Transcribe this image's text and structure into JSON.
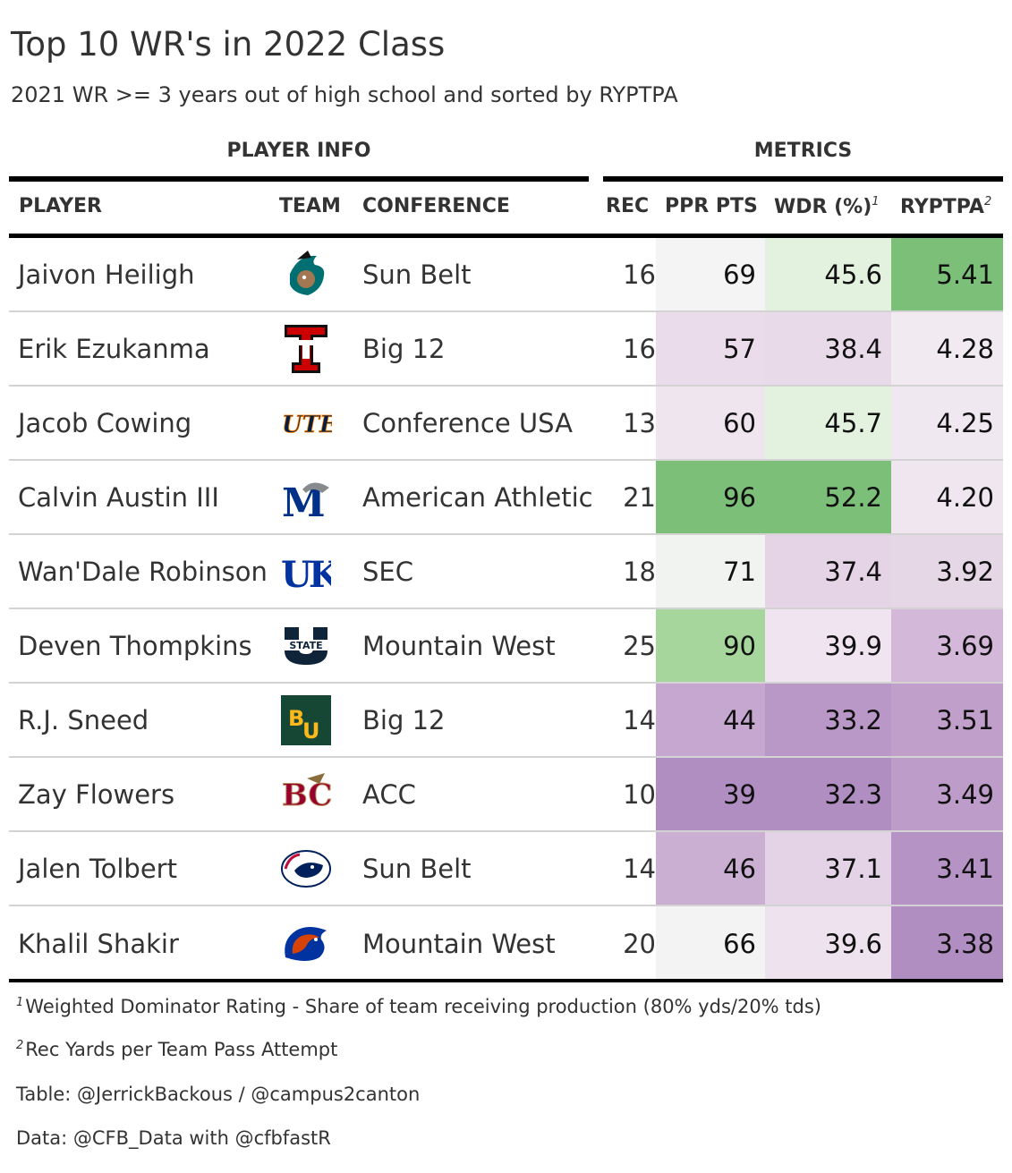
{
  "header": {
    "title": "Top 10 WR's in 2022 Class",
    "subtitle": "2021 WR >= 3 years out of high school and sorted by RYPTPA",
    "spanners": {
      "player_info": "PLAYER INFO",
      "metrics": "METRICS"
    },
    "columns": {
      "player": "PLAYER",
      "team": "TEAM",
      "conference": "CONFERENCE",
      "rec": "REC",
      "ppr": "PPR PTS",
      "wdr": "WDR (%)",
      "wdr_mark": "1",
      "ryptpa": "RYPTPA",
      "ryptpa_mark": "2"
    }
  },
  "chart_data": {
    "type": "table",
    "title": "Top 10 WR's in 2022 Class",
    "subtitle": "2021 WR >= 3 years out of high school and sorted by RYPTPA",
    "rows": [
      {
        "player": "Jaivon Heiligh",
        "team_logo": "coastal-carolina-logo",
        "conference": "Sun Belt",
        "rec": "16",
        "ppr": "69",
        "wdr": "45.6",
        "ryptpa": "5.41",
        "ppr_color": "#f4f4f4",
        "wdr_color": "#e3f1df",
        "ryptpa_color": "#7cbf78"
      },
      {
        "player": "Erik Ezukanma",
        "team_logo": "texas-tech-logo",
        "conference": "Big 12",
        "rec": "16",
        "ppr": "57",
        "wdr": "38.4",
        "ryptpa": "4.28",
        "ppr_color": "#eadcea",
        "wdr_color": "#e9daea",
        "ryptpa_color": "#f1eaf1"
      },
      {
        "player": "Jacob Cowing",
        "team_logo": "utep-logo",
        "conference": "Conference USA",
        "rec": "13",
        "ppr": "60",
        "wdr": "45.7",
        "ryptpa": "4.25",
        "ppr_color": "#efe5ef",
        "wdr_color": "#e3f1df",
        "ryptpa_color": "#f0e8f0"
      },
      {
        "player": "Calvin Austin III",
        "team_logo": "memphis-logo",
        "conference": "American Athletic",
        "rec": "21",
        "ppr": "96",
        "wdr": "52.2",
        "ryptpa": "4.20",
        "ppr_color": "#7cbf78",
        "wdr_color": "#7cbf78",
        "ryptpa_color": "#efe6ef"
      },
      {
        "player": "Wan'Dale Robinson",
        "team_logo": "kentucky-logo",
        "conference": "SEC",
        "rec": "18",
        "ppr": "71",
        "wdr": "37.4",
        "ryptpa": "3.92",
        "ppr_color": "#f1f3f0",
        "wdr_color": "#e5d3e6",
        "ryptpa_color": "#e6d7e7"
      },
      {
        "player": "Deven Thompkins",
        "team_logo": "utah-state-logo",
        "conference": "Mountain West",
        "rec": "25",
        "ppr": "90",
        "wdr": "39.9",
        "ryptpa": "3.69",
        "ppr_color": "#a6d69b",
        "wdr_color": "#efe4ef",
        "ryptpa_color": "#d3b8d9"
      },
      {
        "player": "R.J. Sneed",
        "team_logo": "baylor-logo",
        "conference": "Big 12",
        "rec": "14",
        "ppr": "44",
        "wdr": "33.2",
        "ryptpa": "3.51",
        "ppr_color": "#c5a7cf",
        "wdr_color": "#b998c7",
        "ryptpa_color": "#c09fcb"
      },
      {
        "player": "Zay Flowers",
        "team_logo": "boston-college-logo",
        "conference": "ACC",
        "rec": "10",
        "ppr": "39",
        "wdr": "32.3",
        "ryptpa": "3.49",
        "ppr_color": "#b08ec1",
        "wdr_color": "#b08ec1",
        "ryptpa_color": "#bd9cc9"
      },
      {
        "player": "Jalen Tolbert",
        "team_logo": "south-alabama-logo",
        "conference": "Sun Belt",
        "rec": "14",
        "ppr": "46",
        "wdr": "37.1",
        "ryptpa": "3.41",
        "ppr_color": "#caafd3",
        "wdr_color": "#e4d3e6",
        "ryptpa_color": "#b593c4"
      },
      {
        "player": "Khalil Shakir",
        "team_logo": "boise-state-logo",
        "conference": "Mountain West",
        "rec": "20",
        "ppr": "66",
        "wdr": "39.6",
        "ryptpa": "3.38",
        "ppr_color": "#f3f3f3",
        "wdr_color": "#eee2ee",
        "ryptpa_color": "#b08ec1"
      }
    ]
  },
  "footnotes": {
    "note1_mark": "1",
    "note1": "Weighted Dominator Rating - Share of team receiving production (80% yds/20% tds)",
    "note2_mark": "2",
    "note2": "Rec Yards per Team Pass Attempt",
    "credit_table": "Table: @JerrickBackous / @campus2canton",
    "credit_data": "Data: @CFB_Data with @cfbfastR"
  }
}
